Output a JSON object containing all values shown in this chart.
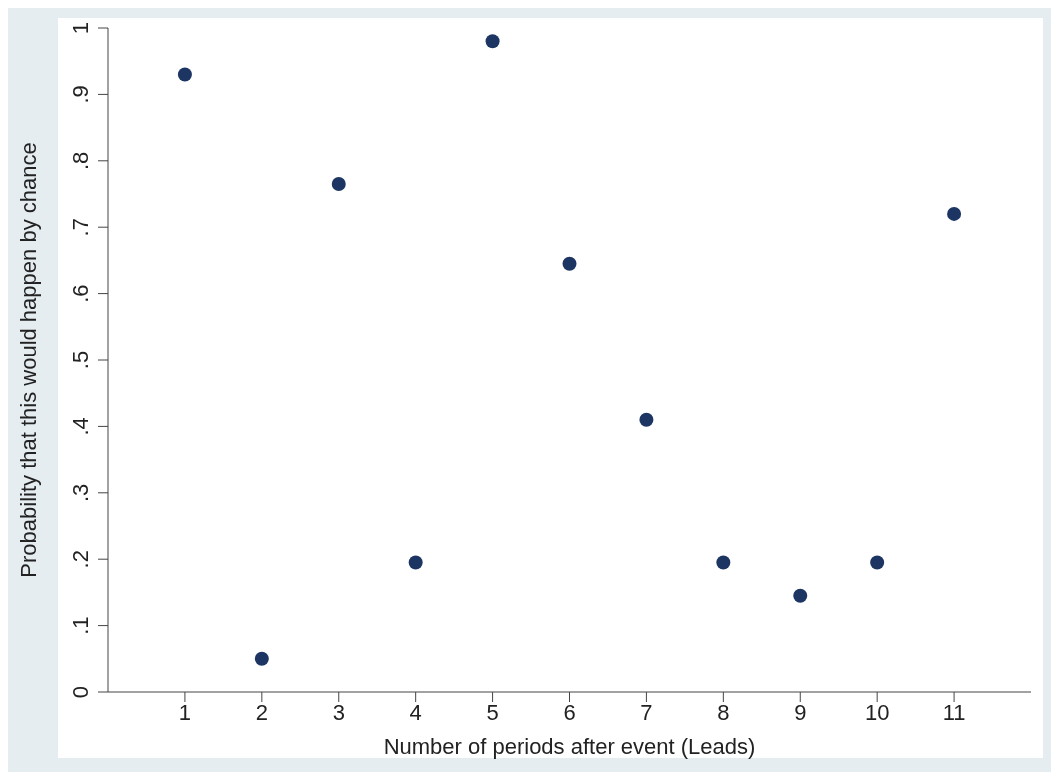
{
  "chart_data": {
    "type": "scatter",
    "xlabel": "Number of periods after event (Leads)",
    "ylabel": "Probability that this would happen by chance",
    "x": [
      1,
      2,
      3,
      4,
      5,
      6,
      7,
      8,
      9,
      10,
      11
    ],
    "values": [
      0.93,
      0.05,
      0.765,
      0.195,
      0.98,
      0.645,
      0.41,
      0.195,
      0.145,
      0.195,
      0.72
    ],
    "color": "#1c3563",
    "marker": "circle",
    "xlim": [
      0,
      12
    ],
    "xticks": [
      1,
      2,
      3,
      4,
      5,
      6,
      7,
      8,
      9,
      10,
      11
    ],
    "ylim": [
      0,
      1
    ],
    "yticks": [
      {
        "value": 0,
        "label": "0"
      },
      {
        "value": 0.1,
        "label": ".1"
      },
      {
        "value": 0.2,
        "label": ".2"
      },
      {
        "value": 0.3,
        "label": ".3"
      },
      {
        "value": 0.4,
        "label": ".4"
      },
      {
        "value": 0.5,
        "label": ".5"
      },
      {
        "value": 0.6,
        "label": ".6"
      },
      {
        "value": 0.7,
        "label": ".7"
      },
      {
        "value": 0.8,
        "label": ".8"
      },
      {
        "value": 0.9,
        "label": ".9"
      },
      {
        "value": 1,
        "label": "1"
      }
    ],
    "legend": false
  }
}
